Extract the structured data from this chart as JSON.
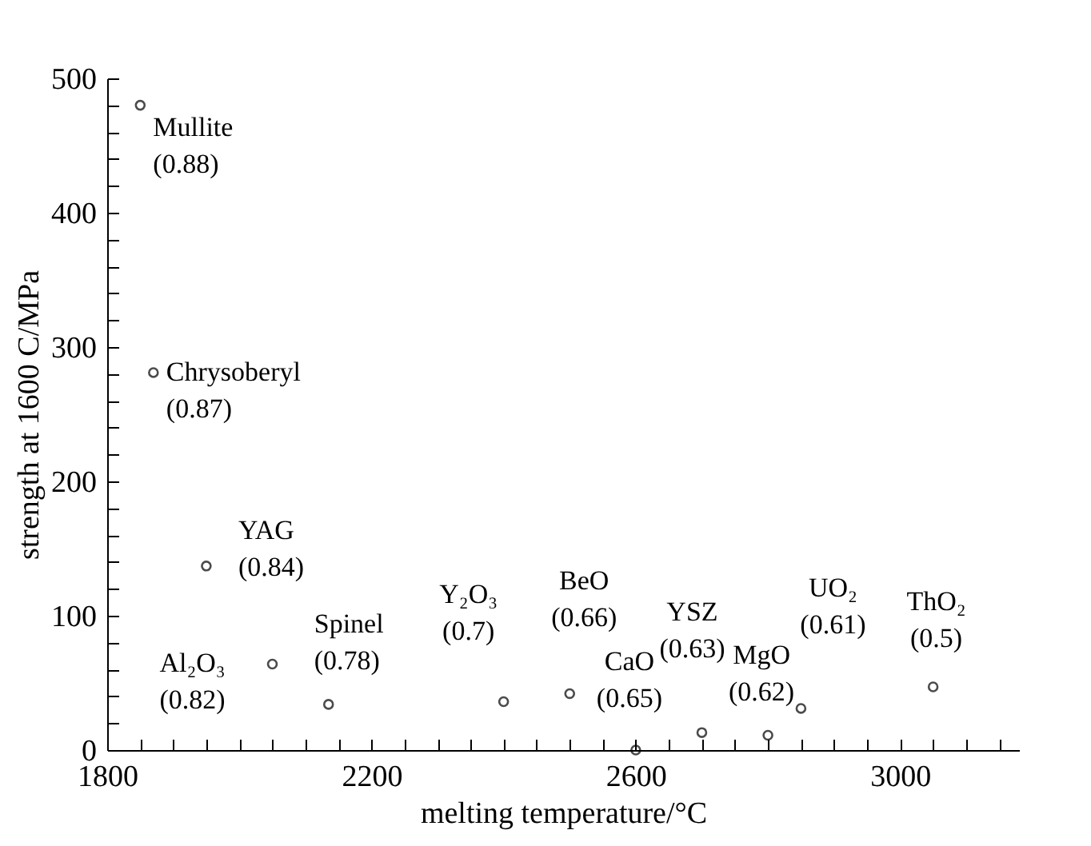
{
  "chart_data": {
    "type": "scatter",
    "xlabel": "melting temperature/°C",
    "ylabel": "strength at 1600 C/MPa",
    "x": [
      1850,
      1870,
      1950,
      2050,
      2135,
      2400,
      2500,
      2600,
      2700,
      2800,
      2850,
      3050
    ],
    "series": [
      {
        "color": "#000000",
        "values": [
          480,
          281,
          137,
          64,
          34,
          36,
          42,
          0,
          13,
          11,
          31,
          47
        ]
      }
    ],
    "marker": "circle",
    "xlim": [
      1800,
      3180
    ],
    "ylim": [
      0,
      500
    ],
    "xticks": [
      1800,
      {
        "value": 1850,
        "label": null
      },
      {
        "value": 1900,
        "label": null
      },
      {
        "value": 1950,
        "label": null
      },
      {
        "value": 2000,
        "label": null
      },
      {
        "value": 2050,
        "label": null
      },
      {
        "value": 2100,
        "label": null
      },
      {
        "value": 2150,
        "label": null
      },
      2200,
      {
        "value": 2250,
        "label": null
      },
      {
        "value": 2300,
        "label": null
      },
      {
        "value": 2350,
        "label": null
      },
      {
        "value": 2400,
        "label": null
      },
      {
        "value": 2450,
        "label": null
      },
      {
        "value": 2500,
        "label": null
      },
      {
        "value": 2550,
        "label": null
      },
      2600,
      {
        "value": 2650,
        "label": null
      },
      {
        "value": 2700,
        "label": null
      },
      {
        "value": 2750,
        "label": null
      },
      {
        "value": 2800,
        "label": null
      },
      {
        "value": 2850,
        "label": null
      },
      {
        "value": 2900,
        "label": null
      },
      {
        "value": 2950,
        "label": null
      },
      3000,
      {
        "value": 3050,
        "label": null
      },
      {
        "value": 3100,
        "label": null
      },
      {
        "value": 3150,
        "label": null
      }
    ],
    "yticks": [
      0,
      {
        "value": 20,
        "label": null
      },
      {
        "value": 40,
        "label": null
      },
      {
        "value": 60,
        "label": null
      },
      {
        "value": 80,
        "label": null
      },
      100,
      {
        "value": 120,
        "label": null
      },
      {
        "value": 140,
        "label": null
      },
      {
        "value": 160,
        "label": null
      },
      {
        "value": 180,
        "label": null
      },
      200,
      {
        "value": 220,
        "label": null
      },
      {
        "value": 240,
        "label": null
      },
      {
        "value": 260,
        "label": null
      },
      {
        "value": 280,
        "label": null
      },
      300,
      {
        "value": 320,
        "label": null
      },
      {
        "value": 340,
        "label": null
      },
      {
        "value": 360,
        "label": null
      },
      {
        "value": 380,
        "label": null
      },
      400,
      {
        "value": 420,
        "label": null
      },
      {
        "value": 440,
        "label": null
      },
      {
        "value": 460,
        "label": null
      },
      {
        "value": 480,
        "label": null
      },
      500
    ],
    "annotations": [
      {
        "text": "Mullite\n(0.88)",
        "x": 1850,
        "y": 480
      },
      {
        "text": "Chrysoberyl\n(0.87)",
        "x": 1870,
        "y": 281
      },
      {
        "text": "YAG\n(0.84)",
        "x": 1950,
        "y": 137
      },
      {
        "text": "Al₂O₃\n(0.82)",
        "x": 2050,
        "y": 64
      },
      {
        "text": "Spinel\n(0.78)",
        "x": 2135,
        "y": 34
      },
      {
        "text": "Y₂O₃\n(0.7)",
        "x": 2400,
        "y": 36
      },
      {
        "text": "BeO\n(0.66)",
        "x": 2500,
        "y": 42
      },
      {
        "text": "CaO\n(0.65)",
        "x": 2600,
        "y": 0
      },
      {
        "text": "YSZ\n(0.63)",
        "x": 2700,
        "y": 13
      },
      {
        "text": "MgO\n(0.62)",
        "x": 2800,
        "y": 11
      },
      {
        "text": "UO₂\n(0.61)",
        "x": 2850,
        "y": 31
      },
      {
        "text": "ThO₂\n(0.5)",
        "x": 3050,
        "y": 47
      }
    ]
  }
}
